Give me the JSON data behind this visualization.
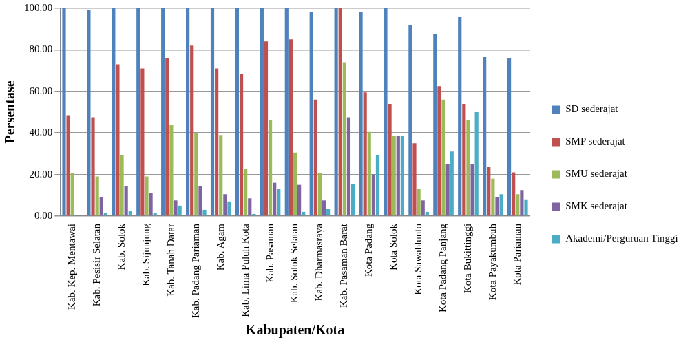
{
  "chart_data": {
    "type": "bar",
    "xlabel": "Kabupaten/Kota",
    "ylabel": "Persentase",
    "categories": [
      "Kab. Kep. Mentawai",
      "Kab. Pesisir Selatan",
      "Kab. Solok",
      "Kab. Sijunjung",
      "Kab. Tanah Datar",
      "Kab. Padang Pariaman",
      "Kab. Agam",
      "Kab. Lima Puluh Kota",
      "Kab. Pasaman",
      "Kab. Solok Selatan",
      "Kab. Dharmasraya",
      "Kab. Pasaman Barat",
      "Kota Padang",
      "Kota Solok",
      "Kota Sawahlunto",
      "Kota Padang Panjang",
      "Kota Bukittinggi",
      "Kota Payakumbuh",
      "Kota Pariaman"
    ],
    "series": [
      {
        "name": "SD sederajat",
        "color": "#4f81bd",
        "values": [
          100,
          99,
          100,
          100,
          100,
          100,
          100,
          100,
          100,
          100,
          98,
          100,
          98,
          100,
          92,
          87.5,
          96,
          76.5,
          76
        ]
      },
      {
        "name": "SMP sederajat",
        "color": "#c0504d",
        "values": [
          48.5,
          47.5,
          73,
          71,
          76,
          82,
          71,
          68.5,
          84,
          85,
          56,
          100,
          59.5,
          54,
          35,
          62.5,
          54,
          23.5,
          21
        ]
      },
      {
        "name": "SMU sederajat",
        "color": "#9bbb59",
        "values": [
          20.5,
          19,
          29.5,
          19,
          44,
          40,
          39,
          22.5,
          46,
          30.5,
          20.5,
          74,
          40.5,
          38.5,
          13,
          56,
          46,
          18,
          10.5
        ]
      },
      {
        "name": "SMK sederajat",
        "color": "#8064a2",
        "values": [
          0,
          9,
          14.5,
          11,
          7.5,
          14.5,
          10.5,
          8.5,
          16,
          15,
          7.5,
          47.5,
          20,
          38.5,
          7.5,
          25,
          25,
          9,
          12.5
        ]
      },
      {
        "name": "Akademi/Perguruan Tinggi",
        "color": "#4bacc6",
        "values": [
          0,
          1.5,
          2.5,
          1.5,
          5,
          3,
          7,
          1,
          13,
          2,
          3.5,
          15.5,
          29.5,
          38.5,
          2,
          31,
          50,
          10.5,
          8
        ]
      }
    ],
    "ylim": [
      0,
      100
    ],
    "yticks": [
      {
        "value": 0,
        "label": "0.00"
      },
      {
        "value": 20,
        "label": "20.00"
      },
      {
        "value": 40,
        "label": "40.00"
      },
      {
        "value": 60,
        "label": "60.00"
      },
      {
        "value": 80,
        "label": "80.00"
      },
      {
        "value": 100,
        "label": "100.00"
      }
    ],
    "grid": "y",
    "legend": "right"
  }
}
